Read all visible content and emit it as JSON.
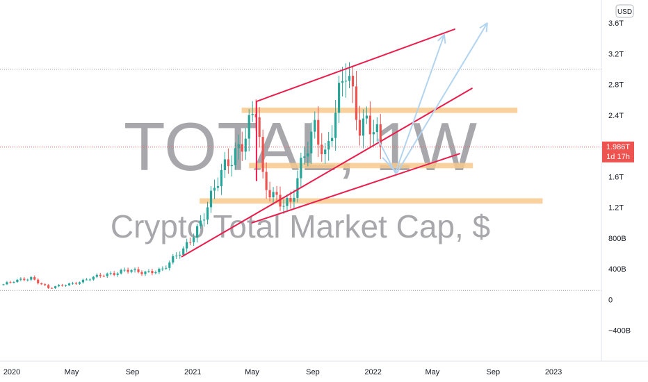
{
  "currency_button": "USD",
  "watermark": {
    "symbol": "TOTAL, 1W",
    "name": "Crypto Total Market Cap, $"
  },
  "price_label": {
    "value": "1.986T",
    "countdown": "1d 17h"
  },
  "colors": {
    "up": "#26a69a",
    "down": "#ef5350",
    "trend": "#e91e4d",
    "zone": "#f8c98d",
    "arrow": "#b3d4f0",
    "price_line": "#ef5350",
    "badge": "#ef5350",
    "axis_text": "#131722",
    "grid_dot": "#9598a1"
  },
  "chart_data": {
    "type": "candlestick",
    "title": "",
    "xlabel": "",
    "ylabel": "",
    "ylim": [
      -800,
      3900
    ],
    "y_ticks": [
      {
        "value": 3600,
        "label": "3.6T"
      },
      {
        "value": 3200,
        "label": "3.2T"
      },
      {
        "value": 2800,
        "label": "2.8T"
      },
      {
        "value": 2400,
        "label": "2.4T"
      },
      {
        "value": 1600,
        "label": "1.6T"
      },
      {
        "value": 1200,
        "label": "1.2T"
      },
      {
        "value": 800,
        "label": "800B"
      },
      {
        "value": 400,
        "label": "400B"
      },
      {
        "value": 0,
        "label": "0"
      },
      {
        "value": -400,
        "label": "−400B"
      }
    ],
    "x_ticks": [
      {
        "date": "2020-01-01",
        "label": "2020"
      },
      {
        "date": "2020-05-01",
        "label": "May"
      },
      {
        "date": "2020-09-01",
        "label": "Sep"
      },
      {
        "date": "2021-01-01",
        "label": "2021"
      },
      {
        "date": "2021-05-01",
        "label": "May"
      },
      {
        "date": "2021-09-01",
        "label": "Sep"
      },
      {
        "date": "2022-01-01",
        "label": "2022"
      },
      {
        "date": "2022-05-01",
        "label": "May"
      },
      {
        "date": "2022-09-01",
        "label": "Sep"
      },
      {
        "date": "2023-01-01",
        "label": "2023"
      }
    ],
    "x_range": [
      "2019-12-08",
      "2023-04-08"
    ],
    "reference_lines": [
      3000,
      120
    ],
    "current_price": 1986,
    "anchors": [
      {
        "date": "2019-12-15",
        "close": 200
      },
      {
        "date": "2020-02-10",
        "close": 290
      },
      {
        "date": "2020-03-16",
        "close": 145
      },
      {
        "date": "2020-05-25",
        "close": 250
      },
      {
        "date": "2020-08-17",
        "close": 390
      },
      {
        "date": "2020-09-21",
        "close": 340
      },
      {
        "date": "2020-11-02",
        "close": 410
      },
      {
        "date": "2020-12-14",
        "close": 640
      },
      {
        "date": "2021-01-11",
        "close": 960
      },
      {
        "date": "2021-02-22",
        "close": 1520
      },
      {
        "date": "2021-03-15",
        "close": 1800
      },
      {
        "date": "2021-05-10",
        "close": 2450
      },
      {
        "date": "2021-05-24",
        "close": 1450
      },
      {
        "date": "2021-07-19",
        "close": 1250
      },
      {
        "date": "2021-09-06",
        "close": 2300
      },
      {
        "date": "2021-09-27",
        "close": 1900
      },
      {
        "date": "2021-11-08",
        "close": 2950
      },
      {
        "date": "2021-12-06",
        "close": 2300
      },
      {
        "date": "2021-12-20",
        "close": 2400
      },
      {
        "date": "2022-01-17",
        "close": 1986
      }
    ],
    "trend_lines": [
      {
        "from": {
          "date": "2021-05-10",
          "value": 2580
        },
        "to": {
          "date": "2022-06-15",
          "value": 3520
        }
      },
      {
        "from": {
          "date": "2021-05-10",
          "value": 2580
        },
        "to": {
          "date": "2021-05-10",
          "value": 1550
        }
      },
      {
        "from": {
          "date": "2020-12-10",
          "value": 560
        },
        "to": {
          "date": "2022-07-20",
          "value": 2750
        }
      },
      {
        "from": {
          "date": "2021-05-01",
          "value": 1000
        },
        "to": {
          "date": "2022-06-25",
          "value": 1900
        }
      }
    ],
    "zones": [
      {
        "from": "2021-04-10",
        "to": "2022-10-20",
        "low": 2430,
        "high": 2500
      },
      {
        "from": "2021-04-25",
        "to": "2022-07-22",
        "low": 1710,
        "high": 1780
      },
      {
        "from": "2021-01-15",
        "to": "2022-12-10",
        "low": 1250,
        "high": 1320
      }
    ],
    "projection_arrows": [
      {
        "points": [
          {
            "date": "2022-01-10",
            "value": 2100
          },
          {
            "date": "2022-02-15",
            "value": 1650
          },
          {
            "date": "2022-05-25",
            "value": 3450
          }
        ]
      },
      {
        "points": [
          {
            "date": "2022-01-20",
            "value": 1850
          },
          {
            "date": "2022-02-18",
            "value": 1650
          },
          {
            "date": "2022-08-20",
            "value": 3600
          }
        ]
      }
    ]
  }
}
